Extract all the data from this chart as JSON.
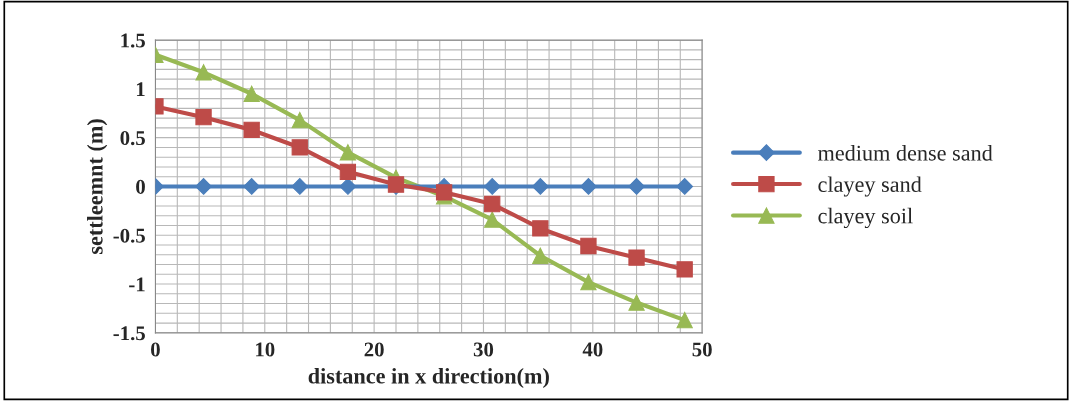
{
  "chart_data": {
    "type": "line",
    "xlabel": "distance in x direction(m)",
    "ylabel": "settleemnt (m)",
    "x": [
      0,
      4.4,
      8.8,
      13.2,
      17.6,
      22,
      26.4,
      30.8,
      35.2,
      39.6,
      44,
      48.4
    ],
    "xlim": [
      0,
      50
    ],
    "xticks": [
      0,
      10,
      20,
      30,
      40,
      50
    ],
    "ylim": [
      -1.5,
      1.5
    ],
    "yticks": [
      -1.5,
      -1,
      -0.5,
      0,
      0.5,
      1,
      1.5
    ],
    "grid": true,
    "legend": "right",
    "series": [
      {
        "name": "medium dense sand",
        "color": "#4a7ebb",
        "marker": "diamond",
        "values": [
          0,
          0,
          0,
          0,
          0,
          0,
          0,
          0,
          0,
          0,
          0,
          0
        ]
      },
      {
        "name": "clayey sand",
        "color": "#be4b48",
        "marker": "square",
        "values": [
          0.82,
          0.71,
          0.58,
          0.4,
          0.15,
          0.02,
          -0.06,
          -0.18,
          -0.43,
          -0.61,
          -0.73,
          -0.85
        ]
      },
      {
        "name": "clayey soil",
        "color": "#98b954",
        "marker": "triangle",
        "values": [
          1.35,
          1.17,
          0.95,
          0.68,
          0.35,
          0.09,
          -0.1,
          -0.34,
          -0.71,
          -0.98,
          -1.19,
          -1.37
        ]
      }
    ]
  }
}
